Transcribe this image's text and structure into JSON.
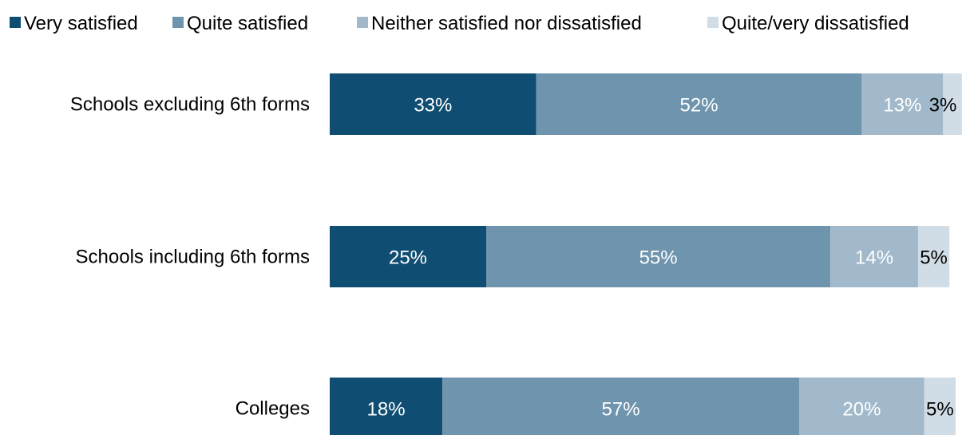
{
  "chart_data": {
    "type": "bar",
    "orientation": "horizontal",
    "stacked": true,
    "legend_position": "top",
    "grid": false,
    "xlim": [
      0,
      100
    ],
    "categories": [
      "Schools excluding 6th forms",
      "Schools including 6th forms",
      "Colleges"
    ],
    "series": [
      {
        "name": "Very satisfied",
        "color": "#0f4d72",
        "label_color": "#ffffff",
        "values": [
          33,
          25,
          18
        ],
        "labels": [
          "33%",
          "25%",
          "18%"
        ]
      },
      {
        "name": "Quite satisfied",
        "color": "#6f94ad",
        "label_color": "#ffffff",
        "values": [
          52,
          55,
          57
        ],
        "labels": [
          "52%",
          "55%",
          "57%"
        ]
      },
      {
        "name": "Neither satisfied nor dissatisfied",
        "color": "#a1b9cb",
        "label_color": "#ffffff",
        "values": [
          13,
          14,
          20
        ],
        "labels": [
          "13%",
          "14%",
          "20%"
        ]
      },
      {
        "name": "Quite/very dissatisfied",
        "color": "#d1dde6",
        "label_color": "#000000",
        "values": [
          3,
          5,
          5
        ],
        "labels": [
          "3%",
          "5%",
          "5%"
        ]
      }
    ]
  }
}
